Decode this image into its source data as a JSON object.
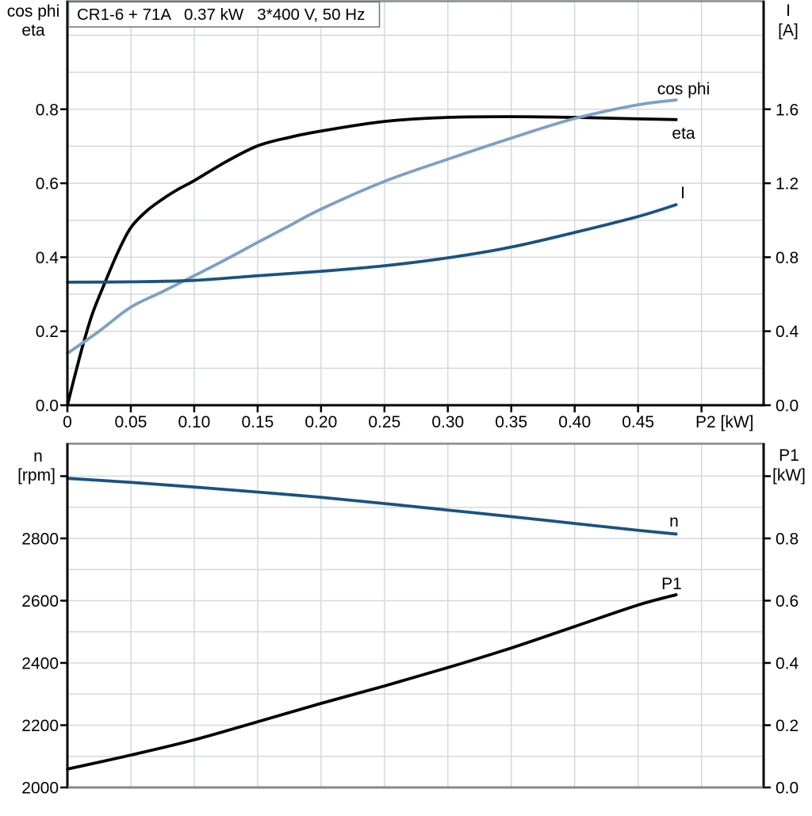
{
  "title_box": {
    "text": "CR1-6 + 71A   0.37 kW   3*400 V, 50 Hz"
  },
  "colors": {
    "eta": "#000000",
    "cos_phi": "#7da0c4",
    "current": "#1b5280",
    "speed": "#1b5280",
    "p1": "#000000",
    "gridline": "#d5d8da",
    "axis": "#000000",
    "border_gray": "#85898c"
  },
  "chart_data": [
    {
      "type": "line",
      "title": "CR1-6 + 71A   0.37 kW   3*400 V, 50 Hz",
      "xlabel": "P2 [kW]",
      "ylabel_left_lines": [
        "cos phi",
        "eta"
      ],
      "ylabel_right_lines": [
        "I",
        "[A]"
      ],
      "xlim": [
        0,
        0.549
      ],
      "ylim_left": [
        0,
        1.091
      ],
      "ylim_right": [
        0,
        2.182
      ],
      "grid": true,
      "x_gridlines": [
        0.05,
        0.1,
        0.15,
        0.2,
        0.25,
        0.3,
        0.35,
        0.4,
        0.45,
        0.5
      ],
      "y_gridlines": [
        0.1,
        0.2,
        0.3,
        0.4,
        0.5,
        0.6,
        0.7,
        0.8,
        0.9,
        1.0
      ],
      "x_ticks": {
        "values": [
          0,
          0.05,
          0.1,
          0.15,
          0.2,
          0.25,
          0.3,
          0.35,
          0.4,
          0.45,
          0.5
        ],
        "labels": [
          "0",
          "0.05",
          "0.10",
          "0.15",
          "0.20",
          "0.25",
          "0.30",
          "0.35",
          "0.40",
          "0.45",
          ""
        ]
      },
      "y_ticks_left": {
        "values": [
          0,
          0.2,
          0.4,
          0.6,
          0.8
        ],
        "labels": [
          "0.0",
          "0.2",
          "0.4",
          "0.6",
          "0.8"
        ]
      },
      "y_ticks_right": {
        "values": [
          0,
          0.4,
          0.8,
          1.2,
          1.6
        ],
        "labels": [
          "0.0",
          "0.4",
          "0.8",
          "1.2",
          "1.6"
        ]
      },
      "series": [
        {
          "name": "eta",
          "axis": "left",
          "color": "#000000",
          "points": [
            [
              0,
              0
            ],
            [
              0.004,
              0.055
            ],
            [
              0.008,
              0.108
            ],
            [
              0.013,
              0.172
            ],
            [
              0.02,
              0.25
            ],
            [
              0.03,
              0.335
            ],
            [
              0.04,
              0.415
            ],
            [
              0.05,
              0.48
            ],
            [
              0.0625,
              0.525
            ],
            [
              0.075,
              0.557
            ],
            [
              0.0875,
              0.584
            ],
            [
              0.1,
              0.607
            ],
            [
              0.125,
              0.658
            ],
            [
              0.15,
              0.701
            ],
            [
              0.175,
              0.724
            ],
            [
              0.2,
              0.741
            ],
            [
              0.25,
              0.767
            ],
            [
              0.3,
              0.778
            ],
            [
              0.35,
              0.78
            ],
            [
              0.4,
              0.778
            ],
            [
              0.45,
              0.774
            ],
            [
              0.48,
              0.772
            ]
          ]
        },
        {
          "name": "cos phi",
          "axis": "left",
          "color": "#7da0c4",
          "points": [
            [
              0,
              0.14
            ],
            [
              0.025,
              0.2
            ],
            [
              0.05,
              0.265
            ],
            [
              0.075,
              0.307
            ],
            [
              0.1,
              0.35
            ],
            [
              0.125,
              0.394
            ],
            [
              0.15,
              0.44
            ],
            [
              0.175,
              0.485
            ],
            [
              0.2,
              0.53
            ],
            [
              0.25,
              0.605
            ],
            [
              0.3,
              0.665
            ],
            [
              0.35,
              0.722
            ],
            [
              0.4,
              0.775
            ],
            [
              0.45,
              0.812
            ],
            [
              0.48,
              0.825
            ]
          ]
        },
        {
          "name": "I",
          "axis": "right",
          "color": "#1b5280",
          "points": [
            [
              0,
              0.665
            ],
            [
              0.05,
              0.667
            ],
            [
              0.1,
              0.675
            ],
            [
              0.15,
              0.7
            ],
            [
              0.2,
              0.724
            ],
            [
              0.25,
              0.754
            ],
            [
              0.3,
              0.797
            ],
            [
              0.35,
              0.855
            ],
            [
              0.4,
              0.934
            ],
            [
              0.45,
              1.02
            ],
            [
              0.48,
              1.084
            ]
          ]
        }
      ]
    },
    {
      "type": "line",
      "title": "",
      "xlabel": "",
      "ylabel_left_lines": [
        "n",
        "[rpm]"
      ],
      "ylabel_right_lines": [
        "P1",
        "[kW]"
      ],
      "xlim": [
        0,
        0.549
      ],
      "ylim_left": [
        2000,
        3103
      ],
      "ylim_right": [
        0,
        1.103
      ],
      "grid": true,
      "x_gridlines": [
        0.05,
        0.1,
        0.15,
        0.2,
        0.25,
        0.3,
        0.35,
        0.4,
        0.45,
        0.5
      ],
      "y_gridlines": [
        2100,
        2200,
        2300,
        2400,
        2500,
        2600,
        2700,
        2800,
        2900,
        3000
      ],
      "x_ticks": {
        "values": [],
        "labels": []
      },
      "y_ticks_left": {
        "values": [
          2000,
          2200,
          2400,
          2600,
          2800,
          3000
        ],
        "labels": [
          "2000",
          "2200",
          "2400",
          "2600",
          "2800",
          ""
        ]
      },
      "y_ticks_right": {
        "values": [
          0,
          0.2,
          0.4,
          0.6,
          0.8,
          1.0
        ],
        "labels": [
          "0.0",
          "0.2",
          "0.4",
          "0.6",
          "0.8",
          ""
        ]
      },
      "series": [
        {
          "name": "n",
          "axis": "left",
          "color": "#1b5280",
          "points": [
            [
              0,
              2993
            ],
            [
              0.05,
              2980
            ],
            [
              0.1,
              2965
            ],
            [
              0.15,
              2949
            ],
            [
              0.2,
              2932
            ],
            [
              0.25,
              2912
            ],
            [
              0.3,
              2891
            ],
            [
              0.35,
              2870
            ],
            [
              0.4,
              2848
            ],
            [
              0.45,
              2826
            ],
            [
              0.48,
              2814
            ]
          ]
        },
        {
          "name": "P1",
          "axis": "right",
          "color": "#000000",
          "points": [
            [
              0,
              0.059
            ],
            [
              0.05,
              0.104
            ],
            [
              0.1,
              0.153
            ],
            [
              0.15,
              0.211
            ],
            [
              0.2,
              0.27
            ],
            [
              0.25,
              0.326
            ],
            [
              0.3,
              0.385
            ],
            [
              0.35,
              0.448
            ],
            [
              0.4,
              0.517
            ],
            [
              0.45,
              0.586
            ],
            [
              0.48,
              0.619
            ]
          ]
        }
      ]
    }
  ]
}
